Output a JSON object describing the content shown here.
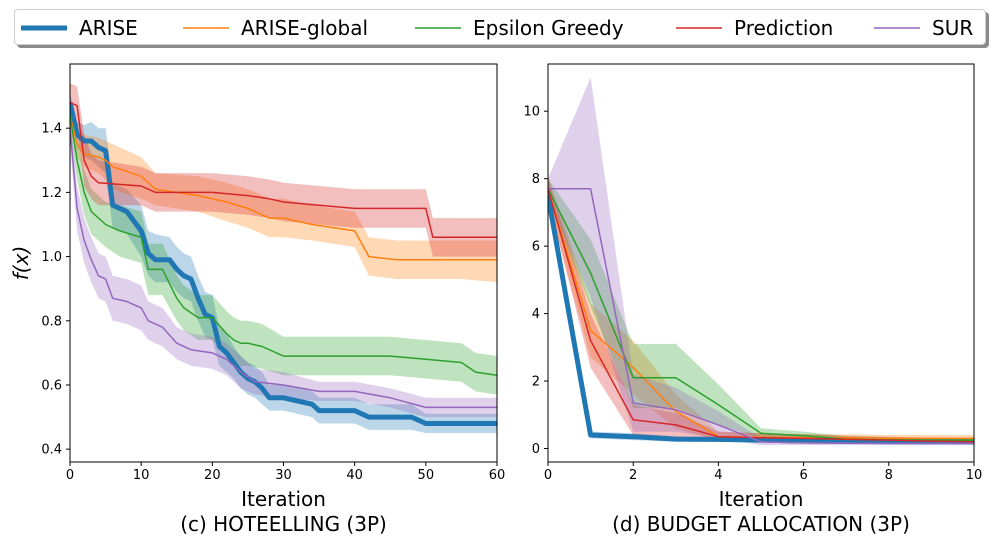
{
  "legend": [
    {
      "name": "ARISE",
      "color": "#1f77b4",
      "width": 5
    },
    {
      "name": "ARISE-global",
      "color": "#ff7f0e",
      "width": 1.5
    },
    {
      "name": "Epsilon Greedy",
      "color": "#2ca02c",
      "width": 1.5
    },
    {
      "name": "Prediction",
      "color": "#d62728",
      "width": 1.5
    },
    {
      "name": "SUR",
      "color": "#9467bd",
      "width": 1.5
    }
  ],
  "chart_data": [
    {
      "type": "line",
      "title": "(c) HOTEELLING (3P)",
      "xlabel": "Iteration",
      "ylabel": "f(x)",
      "xlim": [
        0,
        60
      ],
      "ylim": [
        0.36,
        1.6
      ],
      "xticks": [
        0,
        10,
        20,
        30,
        40,
        50,
        60
      ],
      "yticks": [
        0.4,
        0.6,
        0.8,
        1.0,
        1.2,
        1.4
      ],
      "series": [
        {
          "name": "ARISE",
          "color": "#1f77b4",
          "width": 5,
          "x": [
            0,
            1,
            2,
            3,
            4,
            5,
            6,
            8,
            10,
            11,
            12,
            14,
            15,
            16,
            17,
            18,
            19,
            20,
            21,
            22,
            23,
            24,
            25,
            26,
            27,
            28,
            30,
            32,
            34,
            35,
            37,
            40,
            42,
            45,
            48,
            50,
            55,
            58,
            60
          ],
          "y": [
            1.48,
            1.38,
            1.36,
            1.36,
            1.34,
            1.33,
            1.16,
            1.14,
            1.08,
            1.01,
            0.99,
            0.99,
            0.96,
            0.94,
            0.93,
            0.87,
            0.82,
            0.81,
            0.72,
            0.7,
            0.67,
            0.64,
            0.62,
            0.61,
            0.59,
            0.56,
            0.56,
            0.55,
            0.54,
            0.52,
            0.52,
            0.52,
            0.5,
            0.5,
            0.5,
            0.48,
            0.48,
            0.48,
            0.48
          ],
          "lower": [
            1.45,
            1.34,
            1.31,
            1.3,
            1.28,
            1.26,
            1.09,
            1.07,
            1.0,
            0.94,
            0.92,
            0.92,
            0.89,
            0.87,
            0.86,
            0.8,
            0.75,
            0.74,
            0.66,
            0.64,
            0.62,
            0.59,
            0.57,
            0.56,
            0.54,
            0.52,
            0.52,
            0.51,
            0.5,
            0.48,
            0.48,
            0.48,
            0.46,
            0.46,
            0.46,
            0.45,
            0.45,
            0.45,
            0.45
          ],
          "upper": [
            1.51,
            1.42,
            1.41,
            1.42,
            1.4,
            1.4,
            1.23,
            1.21,
            1.16,
            1.08,
            1.07,
            1.06,
            1.03,
            1.01,
            1.0,
            0.94,
            0.89,
            0.88,
            0.78,
            0.76,
            0.72,
            0.69,
            0.67,
            0.66,
            0.64,
            0.6,
            0.6,
            0.59,
            0.58,
            0.56,
            0.56,
            0.56,
            0.54,
            0.54,
            0.54,
            0.51,
            0.51,
            0.51,
            0.51
          ]
        },
        {
          "name": "ARISE-global",
          "color": "#ff7f0e",
          "width": 1.5,
          "x": [
            0,
            1,
            2,
            4,
            5,
            6,
            10,
            12,
            18,
            22,
            25,
            28,
            30,
            34,
            40,
            42,
            46,
            50,
            55,
            60
          ],
          "y": [
            1.44,
            1.35,
            1.32,
            1.31,
            1.3,
            1.28,
            1.25,
            1.21,
            1.19,
            1.17,
            1.15,
            1.12,
            1.12,
            1.1,
            1.08,
            1.0,
            0.99,
            0.99,
            0.99,
            0.99
          ],
          "lower": [
            1.4,
            1.31,
            1.28,
            1.26,
            1.24,
            1.21,
            1.18,
            1.16,
            1.14,
            1.11,
            1.09,
            1.06,
            1.06,
            1.05,
            1.03,
            0.94,
            0.93,
            0.93,
            0.93,
            0.92
          ],
          "upper": [
            1.48,
            1.4,
            1.38,
            1.37,
            1.36,
            1.35,
            1.31,
            1.26,
            1.25,
            1.23,
            1.21,
            1.18,
            1.18,
            1.16,
            1.14,
            1.06,
            1.05,
            1.05,
            1.05,
            1.05
          ]
        },
        {
          "name": "Epsilon Greedy",
          "color": "#2ca02c",
          "width": 1.5,
          "x": [
            0,
            1,
            2,
            3,
            5,
            7,
            10,
            11,
            13,
            15,
            16,
            18,
            20,
            22,
            23,
            24,
            25,
            27,
            30,
            32,
            35,
            40,
            42,
            45,
            50,
            55,
            57,
            60
          ],
          "y": [
            1.44,
            1.3,
            1.2,
            1.14,
            1.1,
            1.08,
            1.06,
            0.96,
            0.96,
            0.87,
            0.84,
            0.81,
            0.81,
            0.76,
            0.74,
            0.73,
            0.73,
            0.72,
            0.69,
            0.69,
            0.69,
            0.69,
            0.69,
            0.69,
            0.68,
            0.67,
            0.64,
            0.63
          ],
          "lower": [
            1.4,
            1.24,
            1.13,
            1.07,
            1.03,
            1.0,
            0.98,
            0.88,
            0.88,
            0.8,
            0.77,
            0.74,
            0.74,
            0.69,
            0.67,
            0.66,
            0.66,
            0.65,
            0.63,
            0.63,
            0.63,
            0.63,
            0.63,
            0.63,
            0.62,
            0.61,
            0.58,
            0.57
          ],
          "upper": [
            1.48,
            1.36,
            1.27,
            1.21,
            1.17,
            1.16,
            1.14,
            1.04,
            1.04,
            0.94,
            0.91,
            0.88,
            0.88,
            0.83,
            0.81,
            0.8,
            0.8,
            0.79,
            0.75,
            0.75,
            0.75,
            0.75,
            0.75,
            0.75,
            0.74,
            0.73,
            0.7,
            0.69
          ]
        },
        {
          "name": "Prediction",
          "color": "#d62728",
          "width": 1.5,
          "x": [
            0,
            1,
            2,
            3,
            4,
            10,
            12,
            20,
            25,
            28,
            30,
            35,
            40,
            45,
            50,
            51,
            55,
            60
          ],
          "y": [
            1.48,
            1.47,
            1.3,
            1.25,
            1.23,
            1.22,
            1.2,
            1.2,
            1.19,
            1.18,
            1.17,
            1.16,
            1.15,
            1.15,
            1.15,
            1.06,
            1.06,
            1.06
          ],
          "lower": [
            1.42,
            1.4,
            1.22,
            1.18,
            1.16,
            1.16,
            1.14,
            1.14,
            1.13,
            1.12,
            1.11,
            1.1,
            1.09,
            1.09,
            1.09,
            1.0,
            1.0,
            1.0
          ],
          "upper": [
            1.54,
            1.53,
            1.38,
            1.32,
            1.3,
            1.28,
            1.26,
            1.26,
            1.25,
            1.24,
            1.23,
            1.22,
            1.21,
            1.21,
            1.21,
            1.12,
            1.12,
            1.12
          ]
        },
        {
          "name": "SUR",
          "color": "#9467bd",
          "width": 1.5,
          "x": [
            0,
            1,
            2,
            3,
            4,
            5,
            6,
            8,
            10,
            11,
            13,
            15,
            17,
            20,
            22,
            24,
            26,
            30,
            35,
            40,
            45,
            50,
            55,
            60
          ],
          "y": [
            1.4,
            1.15,
            1.05,
            0.99,
            0.94,
            0.93,
            0.87,
            0.86,
            0.84,
            0.8,
            0.78,
            0.73,
            0.71,
            0.7,
            0.68,
            0.64,
            0.61,
            0.6,
            0.58,
            0.58,
            0.56,
            0.53,
            0.53,
            0.53
          ],
          "lower": [
            1.35,
            1.08,
            0.98,
            0.92,
            0.87,
            0.86,
            0.8,
            0.79,
            0.77,
            0.74,
            0.72,
            0.68,
            0.66,
            0.65,
            0.63,
            0.59,
            0.57,
            0.56,
            0.55,
            0.55,
            0.53,
            0.5,
            0.5,
            0.5
          ],
          "upper": [
            1.45,
            1.22,
            1.12,
            1.06,
            1.01,
            1.0,
            0.94,
            0.93,
            0.91,
            0.86,
            0.84,
            0.78,
            0.76,
            0.75,
            0.73,
            0.69,
            0.65,
            0.64,
            0.61,
            0.61,
            0.59,
            0.56,
            0.56,
            0.56
          ]
        }
      ]
    },
    {
      "type": "line",
      "title": "(d) BUDGET ALLOCATION (3P)",
      "xlabel": "Iteration",
      "ylabel": "",
      "xlim": [
        0,
        10
      ],
      "ylim": [
        -0.4,
        11.4
      ],
      "xticks": [
        0,
        2,
        4,
        6,
        8,
        10
      ],
      "yticks": [
        0,
        2,
        4,
        6,
        8,
        10
      ],
      "series": [
        {
          "name": "ARISE",
          "color": "#1f77b4",
          "width": 5,
          "x": [
            0,
            1,
            2,
            3,
            4,
            5,
            6,
            7,
            8,
            9,
            10
          ],
          "y": [
            7.5,
            0.4,
            0.35,
            0.28,
            0.27,
            0.25,
            0.22,
            0.21,
            0.2,
            0.2,
            0.2
          ],
          "lower": [
            7.2,
            0.3,
            0.25,
            0.2,
            0.2,
            0.18,
            0.16,
            0.15,
            0.15,
            0.15,
            0.15
          ],
          "upper": [
            7.8,
            0.5,
            0.45,
            0.36,
            0.34,
            0.32,
            0.28,
            0.27,
            0.25,
            0.25,
            0.25
          ]
        },
        {
          "name": "ARISE-global",
          "color": "#ff7f0e",
          "width": 1.5,
          "x": [
            0,
            1,
            2,
            3,
            4,
            5,
            6,
            7,
            8,
            9,
            10
          ],
          "y": [
            7.7,
            3.5,
            2.4,
            1.1,
            0.35,
            0.33,
            0.32,
            0.32,
            0.3,
            0.3,
            0.3
          ],
          "lower": [
            7.3,
            2.7,
            1.6,
            0.6,
            0.22,
            0.22,
            0.22,
            0.22,
            0.2,
            0.2,
            0.2
          ],
          "upper": [
            8.1,
            4.3,
            3.2,
            1.6,
            0.5,
            0.45,
            0.42,
            0.42,
            0.4,
            0.4,
            0.4
          ]
        },
        {
          "name": "Epsilon Greedy",
          "color": "#2ca02c",
          "width": 1.5,
          "x": [
            0,
            1,
            2,
            3,
            4,
            5,
            6,
            7,
            8,
            9,
            10
          ],
          "y": [
            7.7,
            5.2,
            2.1,
            2.1,
            1.3,
            0.45,
            0.38,
            0.28,
            0.26,
            0.25,
            0.25
          ],
          "lower": [
            7.4,
            4.2,
            1.2,
            1.2,
            0.7,
            0.3,
            0.25,
            0.2,
            0.18,
            0.17,
            0.17
          ],
          "upper": [
            8.0,
            6.2,
            3.1,
            3.1,
            1.9,
            0.6,
            0.5,
            0.36,
            0.33,
            0.32,
            0.32
          ]
        },
        {
          "name": "Prediction",
          "color": "#d62728",
          "width": 1.5,
          "x": [
            0,
            1,
            2,
            3,
            4,
            5,
            6,
            7,
            8,
            9,
            10
          ],
          "y": [
            7.7,
            3.2,
            0.85,
            0.7,
            0.35,
            0.32,
            0.3,
            0.27,
            0.25,
            0.22,
            0.2
          ],
          "lower": [
            7.4,
            2.4,
            0.4,
            0.35,
            0.2,
            0.2,
            0.2,
            0.18,
            0.16,
            0.14,
            0.12
          ],
          "upper": [
            8.0,
            4.0,
            1.3,
            1.05,
            0.5,
            0.45,
            0.42,
            0.38,
            0.35,
            0.32,
            0.3
          ]
        },
        {
          "name": "SUR",
          "color": "#9467bd",
          "width": 1.5,
          "x": [
            0,
            1,
            2,
            3,
            4,
            5,
            6,
            7,
            8,
            9,
            10
          ],
          "y": [
            7.7,
            7.7,
            1.35,
            1.15,
            0.7,
            0.2,
            0.17,
            0.16,
            0.15,
            0.15,
            0.15
          ],
          "lower": [
            7.4,
            4.5,
            0.5,
            0.5,
            0.3,
            0.1,
            0.1,
            0.1,
            0.1,
            0.1,
            0.1
          ],
          "upper": [
            8.0,
            11.0,
            2.2,
            1.8,
            1.1,
            0.3,
            0.25,
            0.22,
            0.2,
            0.2,
            0.2
          ]
        }
      ]
    }
  ]
}
